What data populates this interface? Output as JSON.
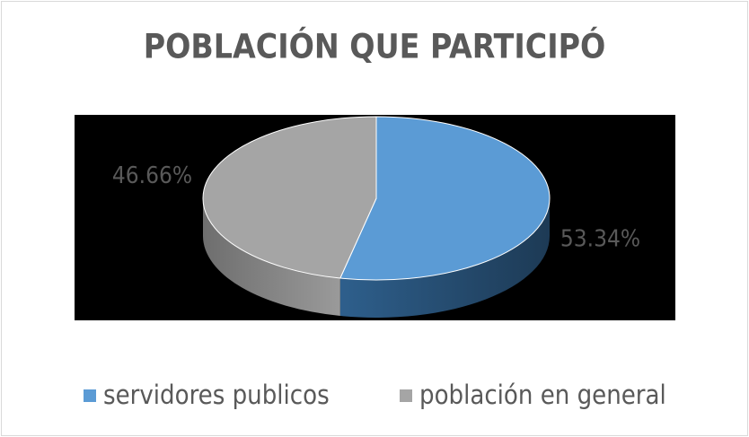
{
  "chart_data": {
    "type": "pie",
    "title": "POBLACIÓN QUE PARTICIPÓ",
    "categories": [
      "servidores publicos",
      "población en general"
    ],
    "values": [
      53.34,
      46.66
    ],
    "value_labels": [
      "53.34%",
      "46.66%"
    ],
    "colors": [
      "#5b9bd5",
      "#a5a5a5"
    ],
    "legend": "bottom",
    "3d": true
  }
}
